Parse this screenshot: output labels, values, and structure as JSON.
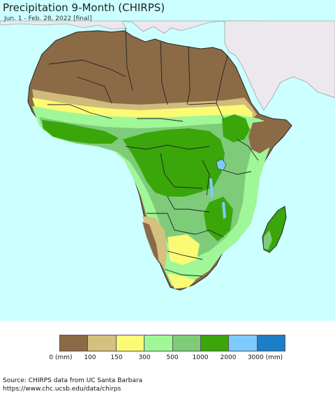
{
  "title": "Precipitation 9-Month (CHIRPS)",
  "subtitle": "Jun. 1 - Feb. 28, 2022 [final]",
  "legend": {
    "colors": [
      "#8b6b46",
      "#d4c07f",
      "#fbfa74",
      "#9ff797",
      "#7ecc7a",
      "#3aa60a",
      "#7fcafc",
      "#1b7ec6"
    ],
    "labels": [
      "0 (mm)",
      "100",
      "150",
      "300",
      "500",
      "1000",
      "2000",
      "3000 (mm)"
    ]
  },
  "colors": {
    "ocean": "#ccffff",
    "non_africa_land": "#ede8ee",
    "borders": "#222222"
  },
  "source": {
    "line1": "Source: CHIRPS data from UC Santa Barbara",
    "line2": "https://www.chc.ucsb.edu/data/chirps"
  }
}
